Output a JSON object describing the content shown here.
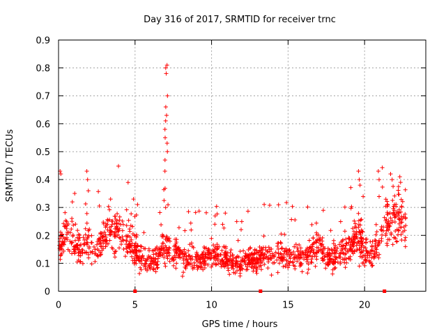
{
  "chart_data": {
    "type": "scatter",
    "title": "Day 316 of 2017, SRMTID for receiver trnc",
    "xlabel": "GPS time / hours",
    "ylabel": "SRMTID / TECUs",
    "xlim": [
      0,
      24
    ],
    "ylim": [
      0,
      0.9
    ],
    "x_ticks": [
      0,
      5,
      10,
      15,
      20
    ],
    "x_tick_labels": [
      "0",
      "5",
      "10",
      "15",
      "20"
    ],
    "y_ticks": [
      0,
      0.1,
      0.2,
      0.3,
      0.4,
      0.5,
      0.6,
      0.7,
      0.8,
      0.9
    ],
    "y_tick_labels": [
      "0",
      "0.1",
      "0.2",
      "0.3",
      "0.4",
      "0.5",
      "0.6",
      "0.7",
      "0.8",
      "0.9"
    ],
    "grid": true,
    "marker": "plus",
    "color": "#ff0000",
    "x_range": [
      0,
      22.7
    ],
    "trend": [
      [
        0.0,
        0.15
      ],
      [
        0.5,
        0.22
      ],
      [
        1.0,
        0.17
      ],
      [
        1.5,
        0.15
      ],
      [
        2.0,
        0.17
      ],
      [
        2.5,
        0.14
      ],
      [
        3.0,
        0.2
      ],
      [
        3.5,
        0.22
      ],
      [
        4.0,
        0.21
      ],
      [
        4.5,
        0.2
      ],
      [
        5.0,
        0.15
      ],
      [
        5.5,
        0.12
      ],
      [
        6.0,
        0.11
      ],
      [
        6.5,
        0.12
      ],
      [
        7.0,
        0.17
      ],
      [
        7.5,
        0.14
      ],
      [
        8.0,
        0.12
      ],
      [
        9.0,
        0.11
      ],
      [
        10.0,
        0.13
      ],
      [
        11.0,
        0.12
      ],
      [
        11.5,
        0.09
      ],
      [
        12.0,
        0.1
      ],
      [
        13.0,
        0.12
      ],
      [
        14.0,
        0.14
      ],
      [
        15.0,
        0.13
      ],
      [
        15.5,
        0.12
      ],
      [
        16.0,
        0.12
      ],
      [
        17.0,
        0.16
      ],
      [
        17.5,
        0.13
      ],
      [
        18.0,
        0.12
      ],
      [
        19.0,
        0.15
      ],
      [
        19.5,
        0.2
      ],
      [
        20.0,
        0.14
      ],
      [
        20.5,
        0.13
      ],
      [
        21.0,
        0.18
      ],
      [
        21.5,
        0.25
      ],
      [
        22.0,
        0.27
      ],
      [
        22.7,
        0.24
      ]
    ],
    "spike": {
      "x_range": [
        6.95,
        7.15
      ],
      "values": [
        0.43,
        0.47,
        0.5,
        0.53,
        0.55,
        0.58,
        0.61,
        0.63,
        0.66,
        0.7,
        0.78,
        0.8,
        0.81
      ]
    },
    "extra_points": [
      [
        0.1,
        0.43
      ],
      [
        0.15,
        0.42
      ],
      [
        1.85,
        0.43
      ],
      [
        1.9,
        0.4
      ],
      [
        1.95,
        0.36
      ],
      [
        19.6,
        0.43
      ],
      [
        19.65,
        0.4
      ],
      [
        19.7,
        0.38
      ],
      [
        20.9,
        0.43
      ],
      [
        20.95,
        0.4
      ],
      [
        21.7,
        0.42
      ],
      [
        22.3,
        0.41
      ],
      [
        21.8,
        0.4
      ],
      [
        22.35,
        0.39
      ],
      [
        10.9,
        0.28
      ],
      [
        17.3,
        0.29
      ],
      [
        0.9,
        0.32
      ],
      [
        3.4,
        0.33
      ],
      [
        4.9,
        0.33
      ],
      [
        7.0,
        0.3
      ]
    ],
    "axis_markers": [
      5.0,
      13.2,
      21.3
    ]
  }
}
